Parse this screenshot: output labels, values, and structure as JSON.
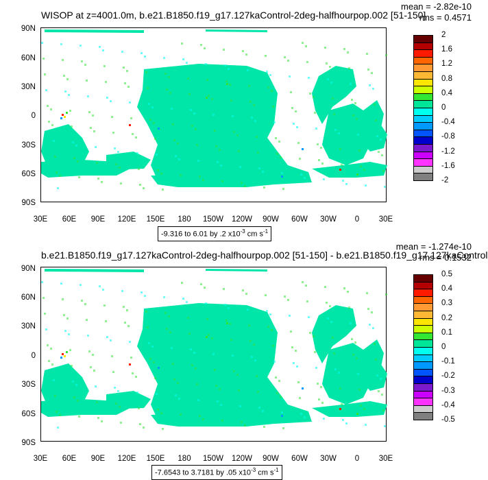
{
  "panels": [
    {
      "id": "top",
      "title": "WISOP at z=4001.0m, b.e21.B1850.f19_g17.127kaControl-2deg-halfhourpop.002 [51-150]",
      "mean_text": "mean = -2.82e-10",
      "rms_text": "rms = 0.4571",
      "range_prefix": "-9.316 to 6.01 by .2 x10",
      "range_exp": "-3",
      "range_unit": " cm s",
      "range_unit_exp": "-1",
      "colorbar_labels": [
        "2",
        "1.6",
        "1.2",
        "0.8",
        "0.4",
        "0",
        "-0.4",
        "-0.8",
        "-1.2",
        "-1.6",
        "-2"
      ]
    },
    {
      "id": "bottom",
      "title": "b.e21.B1850.f19_g17.127kaControl-2deg-halfhourpop.002 [51-150] - b.e21.B1850.f19_g17.127kaControl",
      "mean_text": "mean = -1.274e-10",
      "rms_text": "rms = 0.1532",
      "range_prefix": "-7.6543 to 3.7181 by .05 x10",
      "range_exp": "-3",
      "range_unit": " cm s",
      "range_unit_exp": "-1",
      "colorbar_labels": [
        "0.5",
        "0.4",
        "0.3",
        "0.2",
        "0.1",
        "0",
        "-0.1",
        "-0.2",
        "-0.3",
        "-0.4",
        "-0.5"
      ]
    }
  ],
  "axes": {
    "lat_labels": [
      "90N",
      "60N",
      "30N",
      "0",
      "30S",
      "60S",
      "90S"
    ],
    "lon_labels": [
      "30E",
      "60E",
      "90E",
      "120E",
      "150E",
      "180",
      "150W",
      "120W",
      "90W",
      "60W",
      "30W",
      "0",
      "30E"
    ]
  },
  "colorbar_colors": [
    "#660000",
    "#b30000",
    "#ff1a00",
    "#ff6600",
    "#ff9933",
    "#ffb833",
    "#ffe600",
    "#ccff00",
    "#33e633",
    "#00e699",
    "#00ffee",
    "#00ccff",
    "#0099ff",
    "#0055ff",
    "#0000cc",
    "#7a1acc",
    "#cc00ff",
    "#ff33ff",
    "#cccccc",
    "#808080"
  ],
  "map_colors": {
    "ocean": "#00e6a8",
    "speckle_green": "#33e633",
    "speckle_cyan": "#00ffee",
    "speckle_blue": "#0099ff",
    "speckle_yellow": "#ffe600",
    "speckle_red": "#ff1a00"
  },
  "chart_data": [
    {
      "type": "heatmap",
      "title": "WISOP at z=4001.0m, b.e21.B1850.f19_g17.127kaControl-2deg-halfhourpop.002 [51-150]",
      "xlabel": "",
      "ylabel": "",
      "x_ticks": [
        "30E",
        "60E",
        "90E",
        "120E",
        "150E",
        "180",
        "150W",
        "120W",
        "90W",
        "60W",
        "30W",
        "0",
        "30E"
      ],
      "y_ticks": [
        "90N",
        "60N",
        "30N",
        "0",
        "30S",
        "60S",
        "90S"
      ],
      "colorbar": {
        "min": -2,
        "max": 2,
        "labels": [
          2,
          1.6,
          1.2,
          0.8,
          0.4,
          0,
          -0.4,
          -0.8,
          -1.2,
          -1.6,
          -2
        ]
      },
      "stats": {
        "mean": -2.82e-10,
        "rms": 0.4571
      },
      "data_range": {
        "min": -9.316,
        "max": 6.01,
        "interval": 0.2,
        "scale": "1e-3",
        "unit": "cm s-1"
      }
    },
    {
      "type": "heatmap",
      "title": "b.e21.B1850.f19_g17.127kaControl-2deg-halfhourpop.002 [51-150] - b.e21.B1850.f19_g17.127kaControl",
      "xlabel": "",
      "ylabel": "",
      "x_ticks": [
        "30E",
        "60E",
        "90E",
        "120E",
        "150E",
        "180",
        "150W",
        "120W",
        "90W",
        "60W",
        "30W",
        "0",
        "30E"
      ],
      "y_ticks": [
        "90N",
        "60N",
        "30N",
        "0",
        "30S",
        "60S",
        "90S"
      ],
      "colorbar": {
        "min": -0.5,
        "max": 0.5,
        "labels": [
          0.5,
          0.4,
          0.3,
          0.2,
          0.1,
          0,
          -0.1,
          -0.2,
          -0.3,
          -0.4,
          -0.5
        ]
      },
      "stats": {
        "mean": -1.274e-10,
        "rms": 0.1532
      },
      "data_range": {
        "min": -7.6543,
        "max": 3.7181,
        "interval": 0.05,
        "scale": "1e-3",
        "unit": "cm s-1"
      }
    }
  ]
}
